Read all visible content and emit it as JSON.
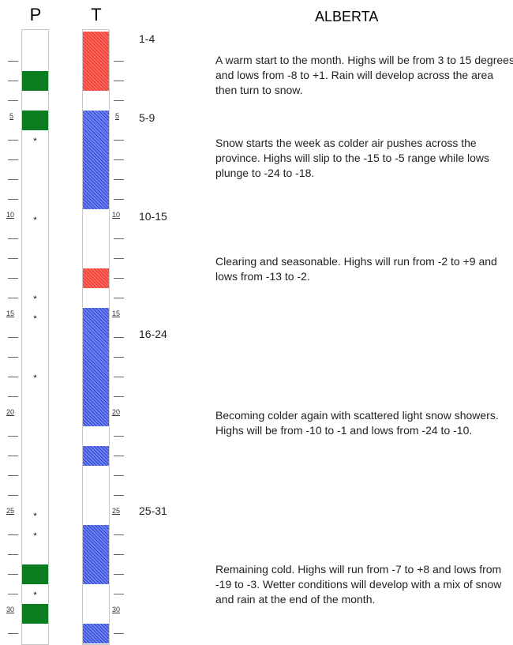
{
  "columns": {
    "p_label": "P",
    "t_label": "T"
  },
  "title": "ALBERTA",
  "day_labels": [
    "5",
    "10",
    "15",
    "20",
    "25",
    "30"
  ],
  "precip_blocks": [
    {
      "start": 3,
      "end": 3
    },
    {
      "start": 5,
      "end": 5
    },
    {
      "start": 28,
      "end": 28
    },
    {
      "start": 30,
      "end": 30
    }
  ],
  "precip_stars": [
    6,
    10,
    14,
    15,
    18,
    25,
    26,
    29
  ],
  "temp_blocks": [
    {
      "start": 1,
      "end": 3,
      "kind": "warm"
    },
    {
      "start": 5,
      "end": 9,
      "kind": "cold"
    },
    {
      "start": 13,
      "end": 13,
      "kind": "warm"
    },
    {
      "start": 15,
      "end": 20,
      "kind": "cold"
    },
    {
      "start": 22,
      "end": 22,
      "kind": "cold"
    },
    {
      "start": 26,
      "end": 28,
      "kind": "cold"
    },
    {
      "start": 31,
      "end": 31,
      "kind": "cold"
    }
  ],
  "periods": [
    {
      "label": "1-4",
      "text": "A warm start to the month. Highs will be from 3 to 15 degrees and lows from -8 to +1. Rain will develop across the area then turn to snow."
    },
    {
      "label": "5-9",
      "text": "Snow starts the week as colder air pushes across the province. Highs will slip to the -15 to -5 range while lows plunge to -24 to -18."
    },
    {
      "label": "10-15",
      "text": "Clearing and seasonable. Highs will run from  -2 to +9 and lows from -13 to -2."
    },
    {
      "label": "16-24",
      "text": "Becoming colder again with scattered light snow showers. Highs will be from -10 to -1 and lows from -24 to -10."
    },
    {
      "label": "25-31",
      "text": "Remaining cold. Highs will run from -7 to +8 and lows from -19 to -3. Wetter conditions will develop with a mix of snow and rain at the end of the month."
    }
  ]
}
